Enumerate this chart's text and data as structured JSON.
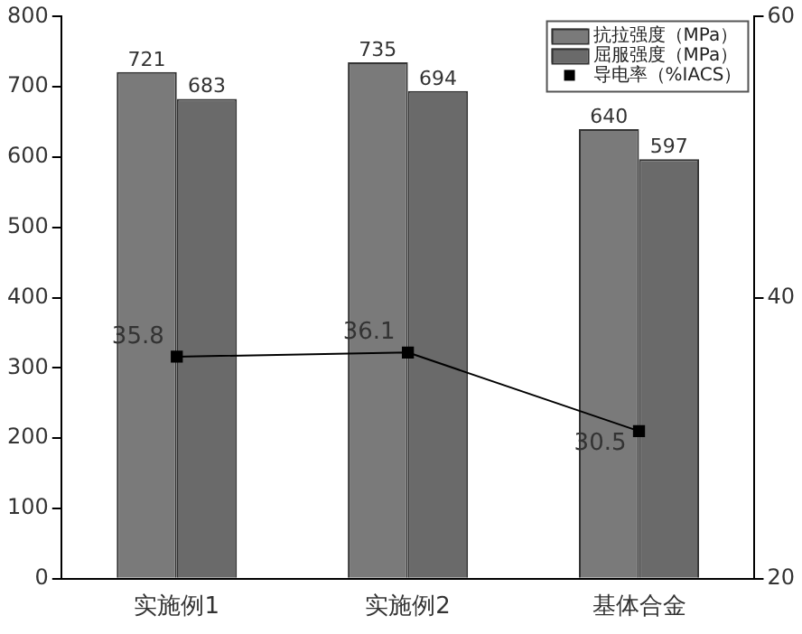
{
  "chart_data": {
    "type": "bar",
    "categories": [
      "实施例1",
      "实施例2",
      "基体合金"
    ],
    "series": [
      {
        "name": "抗拉强度（MPa）",
        "color": "#7a7a7a",
        "values": [
          721,
          735,
          640
        ]
      },
      {
        "name": "屈服强度（MPa）",
        "color": "#6a6a6a",
        "values": [
          683,
          694,
          597
        ]
      },
      {
        "name": "导电率（%IACS）",
        "type": "line",
        "axis": "y2",
        "color": "#000000",
        "values": [
          35.8,
          36.1,
          30.5
        ]
      }
    ],
    "ylim": [
      0,
      800
    ],
    "yticks": [
      0,
      100,
      200,
      300,
      400,
      500,
      600,
      700,
      800
    ],
    "y2lim": [
      20,
      60
    ],
    "y2ticks": [
      20,
      40,
      60
    ],
    "grid": false,
    "legend": "top right",
    "marker": "square",
    "line_style": "solid",
    "data_labels": true
  }
}
